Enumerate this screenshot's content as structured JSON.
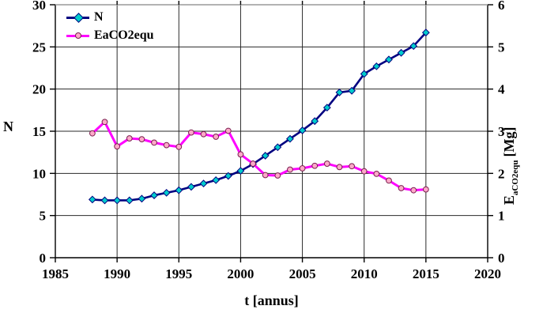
{
  "chart_data": {
    "type": "line",
    "title": "",
    "x_label": "t [annus]",
    "grid": true,
    "legend_position": "top-left-inside",
    "x_axis": {
      "min": 1985,
      "max": 2020,
      "ticks": [
        1985,
        1990,
        1995,
        2000,
        2005,
        2010,
        2015,
        2020
      ]
    },
    "left_axis": {
      "label": "N",
      "min": 0,
      "max": 30,
      "ticks": [
        0,
        5,
        10,
        15,
        20,
        25,
        30
      ]
    },
    "right_axis": {
      "label_main": "E",
      "label_sub": "aCO2equ",
      "label_unit": "[Mg]",
      "min": 0,
      "max": 6,
      "ticks": [
        0,
        1,
        2,
        3,
        4,
        5,
        6
      ]
    },
    "years": [
      1988,
      1989,
      1990,
      1991,
      1992,
      1993,
      1994,
      1995,
      1996,
      1997,
      1998,
      1999,
      2000,
      2001,
      2002,
      2003,
      2004,
      2005,
      2006,
      2007,
      2008,
      2009,
      2010,
      2011,
      2012,
      2013,
      2014,
      2015
    ],
    "series": [
      {
        "name": "N",
        "axis": "left",
        "line_color": "#000080",
        "marker": "diamond",
        "marker_fill": "#00CCCC",
        "marker_stroke": "#000080",
        "values": [
          6.9,
          6.8,
          6.8,
          6.8,
          7.0,
          7.4,
          7.7,
          8.0,
          8.4,
          8.8,
          9.2,
          9.7,
          10.3,
          11.1,
          12.1,
          13.1,
          14.1,
          15.1,
          16.2,
          17.8,
          19.6,
          19.8,
          21.8,
          22.7,
          23.5,
          24.3,
          25.1,
          26.7
        ]
      },
      {
        "name": "EaCO2equ",
        "axis": "right",
        "line_color": "#FF00FF",
        "marker": "circle",
        "marker_fill": "#FFA9C9",
        "marker_stroke": "#7A2050",
        "values": [
          2.95,
          3.22,
          2.64,
          2.83,
          2.81,
          2.73,
          2.67,
          2.63,
          2.97,
          2.93,
          2.87,
          3.01,
          2.45,
          2.23,
          1.96,
          1.95,
          2.09,
          2.12,
          2.18,
          2.23,
          2.15,
          2.17,
          2.05,
          1.99,
          1.83,
          1.65,
          1.6,
          1.62
        ]
      }
    ],
    "colors": {
      "grid": "#2a2a2a",
      "axis": "#000000",
      "top_border": "#9a9a9a",
      "text": "#000000"
    }
  }
}
